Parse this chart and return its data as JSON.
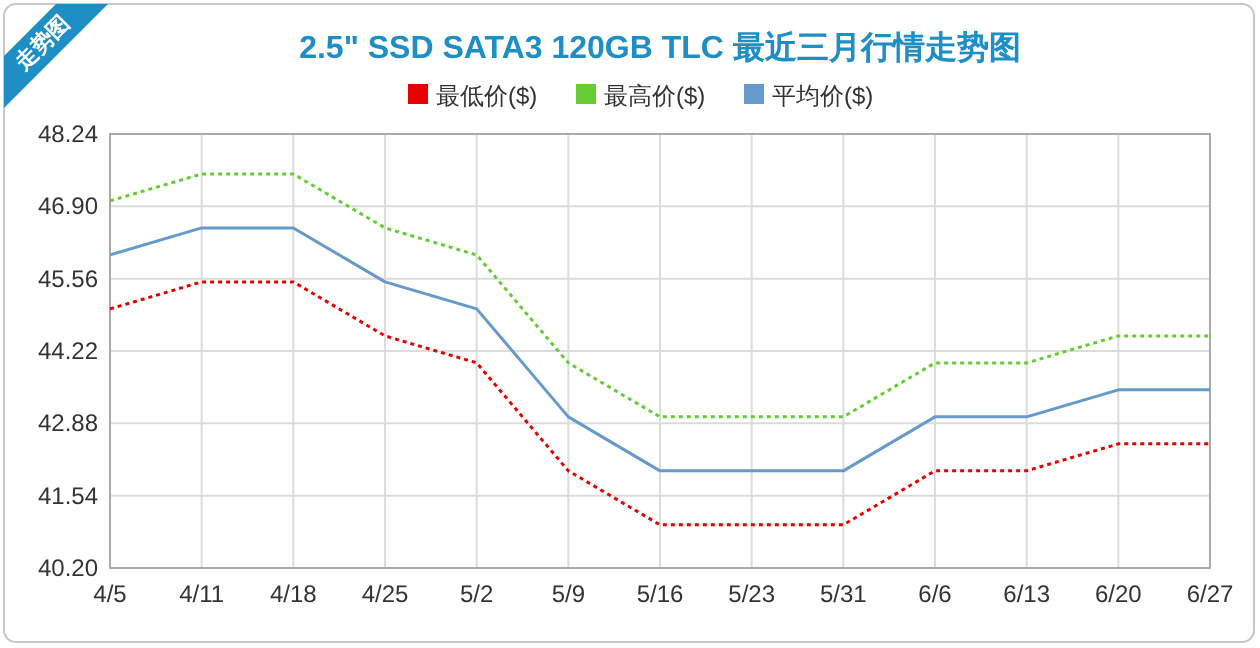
{
  "chart_data": {
    "type": "line",
    "title": "2.5\" SSD SATA3 120GB TLC 最近三月行情走势图",
    "annotations": [
      "走势图"
    ],
    "categories": [
      "4/5",
      "4/11",
      "4/18",
      "4/25",
      "5/2",
      "5/9",
      "5/16",
      "5/23",
      "5/31",
      "6/6",
      "6/13",
      "6/20",
      "6/27"
    ],
    "series": [
      {
        "name": "最低价($)",
        "color": "#e60000",
        "line_style": "dotted",
        "values": [
          45,
          45.5,
          45.5,
          44.5,
          44,
          42,
          41,
          41,
          41,
          42,
          42,
          42.5,
          42.5
        ]
      },
      {
        "name": "最高价($)",
        "color": "#66cc33",
        "line_style": "dotted",
        "values": [
          47,
          47.5,
          47.5,
          46.5,
          46,
          44,
          43,
          43,
          43,
          44,
          44,
          44.5,
          44.5
        ]
      },
      {
        "name": "平均价($)",
        "color": "#6699cc",
        "line_style": "solid",
        "values": [
          46,
          46.5,
          46.5,
          45.5,
          45,
          43,
          42,
          42,
          42,
          43,
          43,
          43.5,
          43.5
        ]
      }
    ],
    "ylim": [
      40.2,
      48.24
    ],
    "yticks": [
      {
        "value": 40.2,
        "label": "40.20"
      },
      {
        "value": 41.54,
        "label": "41.54"
      },
      {
        "value": 42.88,
        "label": "42.88"
      },
      {
        "value": 44.22,
        "label": "44.22"
      },
      {
        "value": 45.56,
        "label": "45.56"
      },
      {
        "value": 46.9,
        "label": "46.90"
      },
      {
        "value": 48.24,
        "label": "48.24"
      }
    ],
    "grid": true,
    "legend": "top",
    "marker": "none"
  }
}
